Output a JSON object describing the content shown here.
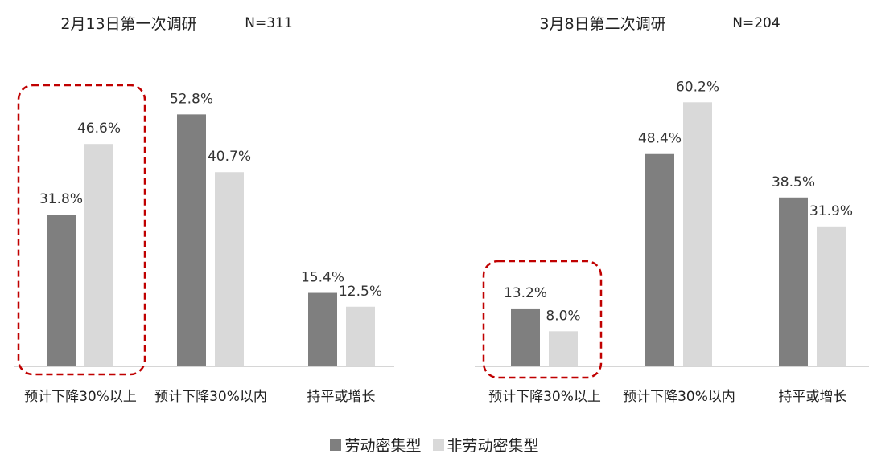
{
  "chart_data": [
    {
      "type": "bar",
      "title": "2月13日第一次调研",
      "sample_size": "N=311",
      "categories": [
        "预计下降30%以上",
        "预计下降30%以内",
        "持平或增长"
      ],
      "series": [
        {
          "name": "劳动密集型",
          "values": [
            31.8,
            52.8,
            15.4
          ],
          "labels": [
            "31.8%",
            "52.8%",
            "15.4%"
          ]
        },
        {
          "name": "非劳动密集型",
          "values": [
            46.6,
            40.7,
            12.5
          ],
          "labels": [
            "46.6%",
            "40.7%",
            "12.5%"
          ]
        }
      ],
      "highlighted_category": "预计下降30%以上",
      "ylim": [
        0,
        60
      ],
      "grid": false
    },
    {
      "type": "bar",
      "title": "3月8日第二次调研",
      "sample_size": "N=204",
      "categories": [
        "预计下降30%以上",
        "预计下降30%以内",
        "持平或增长"
      ],
      "series": [
        {
          "name": "劳动密集型",
          "values": [
            13.2,
            48.4,
            38.5
          ],
          "labels": [
            "13.2%",
            "48.4%",
            "38.5%"
          ]
        },
        {
          "name": "非劳动密集型",
          "values": [
            8.0,
            60.2,
            31.9
          ],
          "labels": [
            "8.0%",
            "60.2%",
            "31.9%"
          ]
        }
      ],
      "highlighted_category": "预计下降30%以上",
      "ylim": [
        0,
        60
      ],
      "grid": false
    }
  ],
  "legend": {
    "placement": "bottom-center",
    "items": [
      {
        "label": "劳动密集型",
        "color": "#7f7f7f"
      },
      {
        "label": "非劳动密集型",
        "color": "#d9d9d9"
      }
    ]
  },
  "colors": {
    "series1": "#7f7f7f",
    "series2": "#d9d9d9",
    "highlight_box": "#c00000",
    "axis": "#c8c8c8",
    "text": "#222222"
  }
}
